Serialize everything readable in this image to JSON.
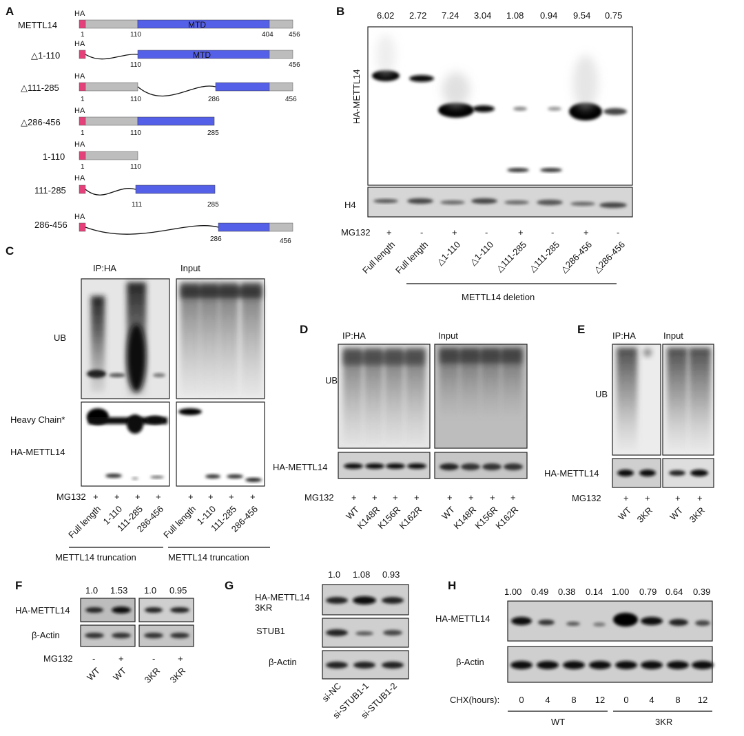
{
  "panel_a": {
    "label": "A",
    "tag": "HA",
    "domain": "MTD",
    "constructs": [
      {
        "name": "METTL14",
        "ticks": [
          "1",
          "110",
          "404",
          "456"
        ]
      },
      {
        "name": "△1-110",
        "ticks": [
          "110",
          "456"
        ]
      },
      {
        "name": "△111-285",
        "ticks": [
          "1",
          "110",
          "286",
          "456"
        ]
      },
      {
        "name": "△286-456",
        "ticks": [
          "1",
          "110",
          "285"
        ]
      },
      {
        "name": "1-110",
        "ticks": [
          "1",
          "110"
        ]
      },
      {
        "name": "111-285",
        "ticks": [
          "111",
          "285"
        ]
      },
      {
        "name": "286-456",
        "ticks": [
          "286",
          "456"
        ]
      }
    ]
  },
  "panel_b": {
    "label": "B",
    "quant": [
      "6.02",
      "2.72",
      "7.24",
      "3.04",
      "1.08",
      "0.94",
      "9.54",
      "0.75"
    ],
    "blot_labels": [
      "HA-METTL14",
      "H4"
    ],
    "treatment": "MG132",
    "signs": [
      "+",
      "-",
      "+",
      "-",
      "+",
      "-",
      "+",
      "-"
    ],
    "lanes": [
      "Full length",
      "Full length",
      "△1-110",
      "△1-110",
      "△111-285",
      "△111-285",
      "△286-456",
      "△286-456"
    ],
    "group": "METTL14 deletion"
  },
  "panel_c": {
    "label": "C",
    "ip": "IP:HA",
    "input": "Input",
    "ub": "UB",
    "heavy": "Heavy Chain*",
    "ha": "HA-METTL14",
    "treatment": "MG132",
    "signs": [
      "+",
      "+",
      "+",
      "+",
      "+",
      "+",
      "+",
      "+"
    ],
    "lanes": [
      "Full length",
      "1-110",
      "111-285",
      "286-456",
      "Full length",
      "1-110",
      "111-285",
      "286-456"
    ],
    "group": "METTL14 truncation"
  },
  "panel_d": {
    "label": "D",
    "ip": "IP:HA",
    "input": "Input",
    "ub": "UB",
    "ha": "HA-METTL14",
    "treatment": "MG132",
    "signs": [
      "+",
      "+",
      "+",
      "+",
      "+",
      "+",
      "+",
      "+"
    ],
    "lanes": [
      "WT",
      "K148R",
      "K156R",
      "K162R",
      "WT",
      "K148R",
      "K156R",
      "K162R"
    ]
  },
  "panel_e": {
    "label": "E",
    "ip": "IP:HA",
    "input": "Input",
    "ub": "UB",
    "ha": "HA-METTL14",
    "treatment": "MG132",
    "signs": [
      "+",
      "+",
      "+",
      "+"
    ],
    "lanes": [
      "WT",
      "3KR",
      "WT",
      "3KR"
    ]
  },
  "panel_f": {
    "label": "F",
    "quant": [
      "1.0",
      "1.53",
      "1.0",
      "0.95"
    ],
    "blot_labels": [
      "HA-METTL14",
      "β-Actin"
    ],
    "treatment": "MG132",
    "signs": [
      "-",
      "+",
      "-",
      "+"
    ],
    "lanes": [
      "WT",
      "WT",
      "3KR",
      "3KR"
    ]
  },
  "panel_g": {
    "label": "G",
    "quant": [
      "1.0",
      "1.08",
      "0.93"
    ],
    "blot_labels": [
      "HA-METTL14",
      "3KR",
      "STUB1",
      "β-Actin"
    ],
    "lanes": [
      "si-NC",
      "si-STUB1-1",
      "si-STUB1-2"
    ]
  },
  "panel_h": {
    "label": "H",
    "quant": [
      "1.00",
      "0.49",
      "0.38",
      "0.14",
      "1.00",
      "0.79",
      "0.64",
      "0.39"
    ],
    "blot_labels": [
      "HA-METTL14",
      "β-Actin"
    ],
    "treatment": "CHX(hours):",
    "hours": [
      "0",
      "4",
      "8",
      "12",
      "0",
      "4",
      "8",
      "12"
    ],
    "groups": [
      "WT",
      "3KR"
    ]
  }
}
